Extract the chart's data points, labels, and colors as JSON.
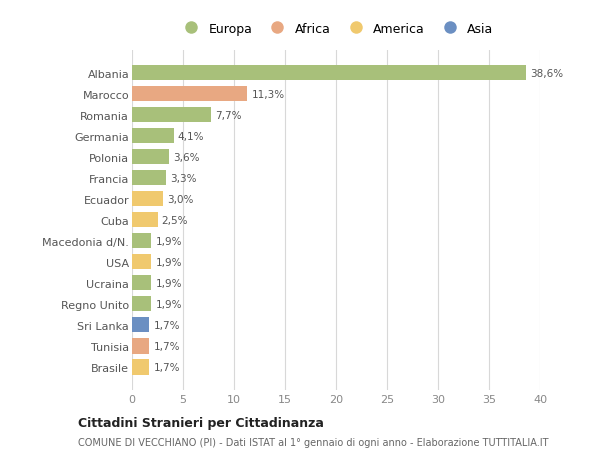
{
  "countries": [
    "Albania",
    "Marocco",
    "Romania",
    "Germania",
    "Polonia",
    "Francia",
    "Ecuador",
    "Cuba",
    "Macedonia d/N.",
    "USA",
    "Ucraina",
    "Regno Unito",
    "Sri Lanka",
    "Tunisia",
    "Brasile"
  ],
  "values": [
    38.6,
    11.3,
    7.7,
    4.1,
    3.6,
    3.3,
    3.0,
    2.5,
    1.9,
    1.9,
    1.9,
    1.9,
    1.7,
    1.7,
    1.7
  ],
  "labels": [
    "38,6%",
    "11,3%",
    "7,7%",
    "4,1%",
    "3,6%",
    "3,3%",
    "3,0%",
    "2,5%",
    "1,9%",
    "1,9%",
    "1,9%",
    "1,9%",
    "1,7%",
    "1,7%",
    "1,7%"
  ],
  "continents": [
    "Europa",
    "Africa",
    "Europa",
    "Europa",
    "Europa",
    "Europa",
    "America",
    "America",
    "Europa",
    "America",
    "Europa",
    "Europa",
    "Asia",
    "Africa",
    "America"
  ],
  "continent_colors": {
    "Europa": "#a8c07a",
    "Africa": "#e8a882",
    "America": "#f0c96e",
    "Asia": "#6b8fc2"
  },
  "legend_order": [
    "Europa",
    "Africa",
    "America",
    "Asia"
  ],
  "title": "Cittadini Stranieri per Cittadinanza",
  "subtitle": "COMUNE DI VECCHIANO (PI) - Dati ISTAT al 1° gennaio di ogni anno - Elaborazione TUTTITALIA.IT",
  "xlim": [
    0,
    40
  ],
  "xticks": [
    0,
    5,
    10,
    15,
    20,
    25,
    30,
    35,
    40
  ],
  "background_color": "#ffffff",
  "grid_color": "#d8d8d8",
  "bar_height": 0.72
}
